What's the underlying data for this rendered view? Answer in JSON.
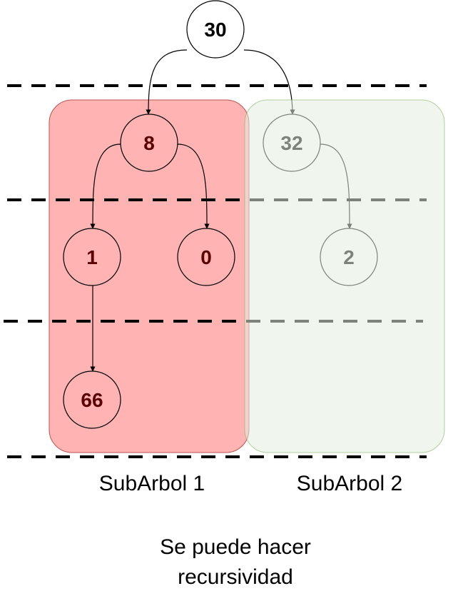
{
  "nodes": [
    {
      "id": "n30",
      "label": "30"
    },
    {
      "id": "n8",
      "label": "8"
    },
    {
      "id": "n32",
      "label": "32"
    },
    {
      "id": "n1",
      "label": "1"
    },
    {
      "id": "n0",
      "label": "0"
    },
    {
      "id": "n2",
      "label": "2"
    },
    {
      "id": "n66",
      "label": "66"
    }
  ],
  "edges": [
    {
      "from": "n30",
      "to": "n8"
    },
    {
      "from": "n30",
      "to": "n32"
    },
    {
      "from": "n8",
      "to": "n1"
    },
    {
      "from": "n8",
      "to": "n0"
    },
    {
      "from": "n32",
      "to": "n2"
    },
    {
      "from": "n1",
      "to": "n66"
    }
  ],
  "subtrees": [
    {
      "label": "SubArbol 1",
      "fill": "#ffb3b3",
      "stroke": "#b85450"
    },
    {
      "label": "SubArbol 2",
      "fill": "#e3efdf",
      "stroke": "#82b366"
    }
  ],
  "note": {
    "lines": [
      "Se puede hacer",
      "recursividad"
    ]
  },
  "colors": {
    "root_text": "#000000",
    "left_text": "#5a0000",
    "right_text": "#6e6e6e",
    "level_line": "#000000"
  }
}
